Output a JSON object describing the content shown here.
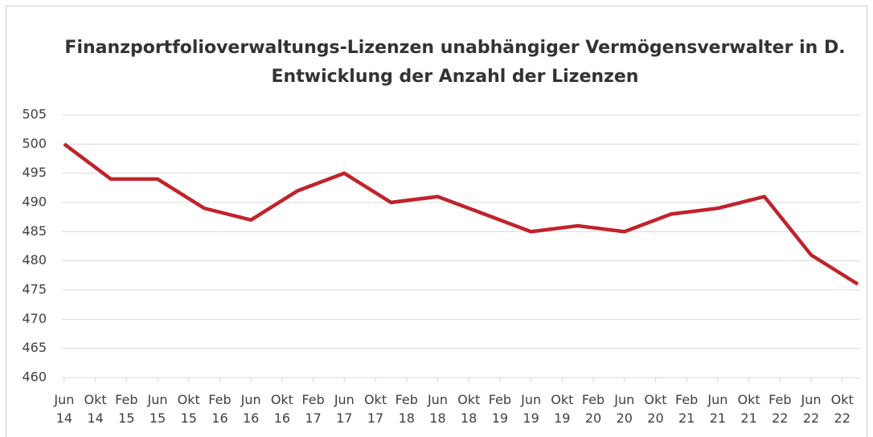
{
  "chart_data": {
    "type": "line",
    "title": "Finanzportfolioverwaltungs-Lizenzen unabhängiger Vermögensverwalter in D.",
    "subtitle": "Entwicklung der Anzahl der Lizenzen",
    "x": [
      0,
      6,
      12,
      18,
      24,
      30,
      36,
      42,
      48,
      54,
      60,
      66,
      72,
      78,
      84,
      90,
      96,
      102
    ],
    "series": [
      {
        "name": "Lizenzen",
        "color": "#c0232b",
        "values": [
          500,
          494,
          494,
          489,
          487,
          492,
          495,
          490,
          491,
          488,
          485,
          486,
          485,
          488,
          489,
          491,
          481,
          476
        ]
      }
    ],
    "xlim": [
      -0.3,
      102.3
    ],
    "xticks": [
      {
        "value": 0,
        "label": "Jun 14"
      },
      {
        "value": 4,
        "label": "Okt 14"
      },
      {
        "value": 8,
        "label": "Feb 15"
      },
      {
        "value": 12,
        "label": "Jun 15"
      },
      {
        "value": 16,
        "label": "Okt 15"
      },
      {
        "value": 20,
        "label": "Feb 16"
      },
      {
        "value": 24,
        "label": "Jun 16"
      },
      {
        "value": 28,
        "label": "Okt 16"
      },
      {
        "value": 32,
        "label": "Feb 17"
      },
      {
        "value": 36,
        "label": "Jun 17"
      },
      {
        "value": 40,
        "label": "Okt 17"
      },
      {
        "value": 44,
        "label": "Feb 18"
      },
      {
        "value": 48,
        "label": "Jun 18"
      },
      {
        "value": 52,
        "label": "Okt 18"
      },
      {
        "value": 56,
        "label": "Feb 19"
      },
      {
        "value": 60,
        "label": "Jun 19"
      },
      {
        "value": 64,
        "label": "Okt 19"
      },
      {
        "value": 68,
        "label": "Feb 20"
      },
      {
        "value": 72,
        "label": "Jun 20"
      },
      {
        "value": 76,
        "label": "Okt 20"
      },
      {
        "value": 80,
        "label": "Feb 21"
      },
      {
        "value": 84,
        "label": "Jun 21"
      },
      {
        "value": 88,
        "label": "Okt 21"
      },
      {
        "value": 92,
        "label": "Feb 22"
      },
      {
        "value": 96,
        "label": "Jun 22"
      },
      {
        "value": 100,
        "label": "Okt 22"
      }
    ],
    "ylim": [
      460,
      505
    ],
    "yticks": [
      460,
      465,
      470,
      475,
      480,
      485,
      490,
      495,
      500,
      505
    ],
    "grid": true
  }
}
